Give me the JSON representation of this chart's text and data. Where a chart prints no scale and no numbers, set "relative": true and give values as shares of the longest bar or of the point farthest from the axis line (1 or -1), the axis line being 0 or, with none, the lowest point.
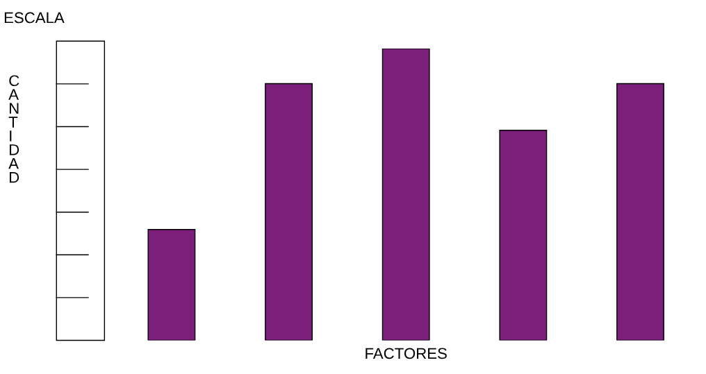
{
  "chart_data": {
    "type": "bar",
    "relative": true,
    "xlabel": "FACTORES",
    "annotations": [
      "ESCALA",
      "CANTIDAD"
    ],
    "categories": [
      null,
      null,
      null,
      null,
      null
    ],
    "values": [
      0.38,
      0.88,
      1,
      0.72,
      0.88
    ],
    "color": "#7b1f7b",
    "grid": false
  }
}
